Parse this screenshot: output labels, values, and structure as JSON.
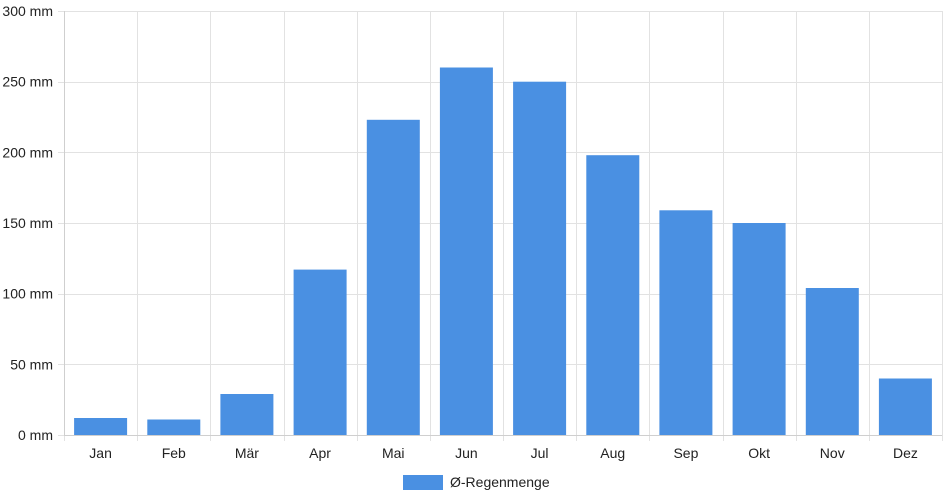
{
  "chart_data": {
    "type": "bar",
    "categories": [
      "Jan",
      "Feb",
      "Mär",
      "Apr",
      "Mai",
      "Jun",
      "Jul",
      "Aug",
      "Sep",
      "Okt",
      "Nov",
      "Dez"
    ],
    "series": [
      {
        "name": "Ø-Regenmenge",
        "values": [
          12,
          11,
          29,
          117,
          223,
          260,
          250,
          198,
          159,
          150,
          104,
          40
        ],
        "color": "#4a90e2"
      }
    ],
    "y_unit": "mm",
    "ylim": [
      0,
      300
    ],
    "y_ticks": [
      0,
      50,
      100,
      150,
      200,
      250,
      300
    ],
    "y_tick_labels": [
      "0 mm",
      "50 mm",
      "100 mm",
      "150 mm",
      "200 mm",
      "250 mm",
      "300 mm"
    ],
    "grid": true,
    "legend_position": "bottom"
  }
}
